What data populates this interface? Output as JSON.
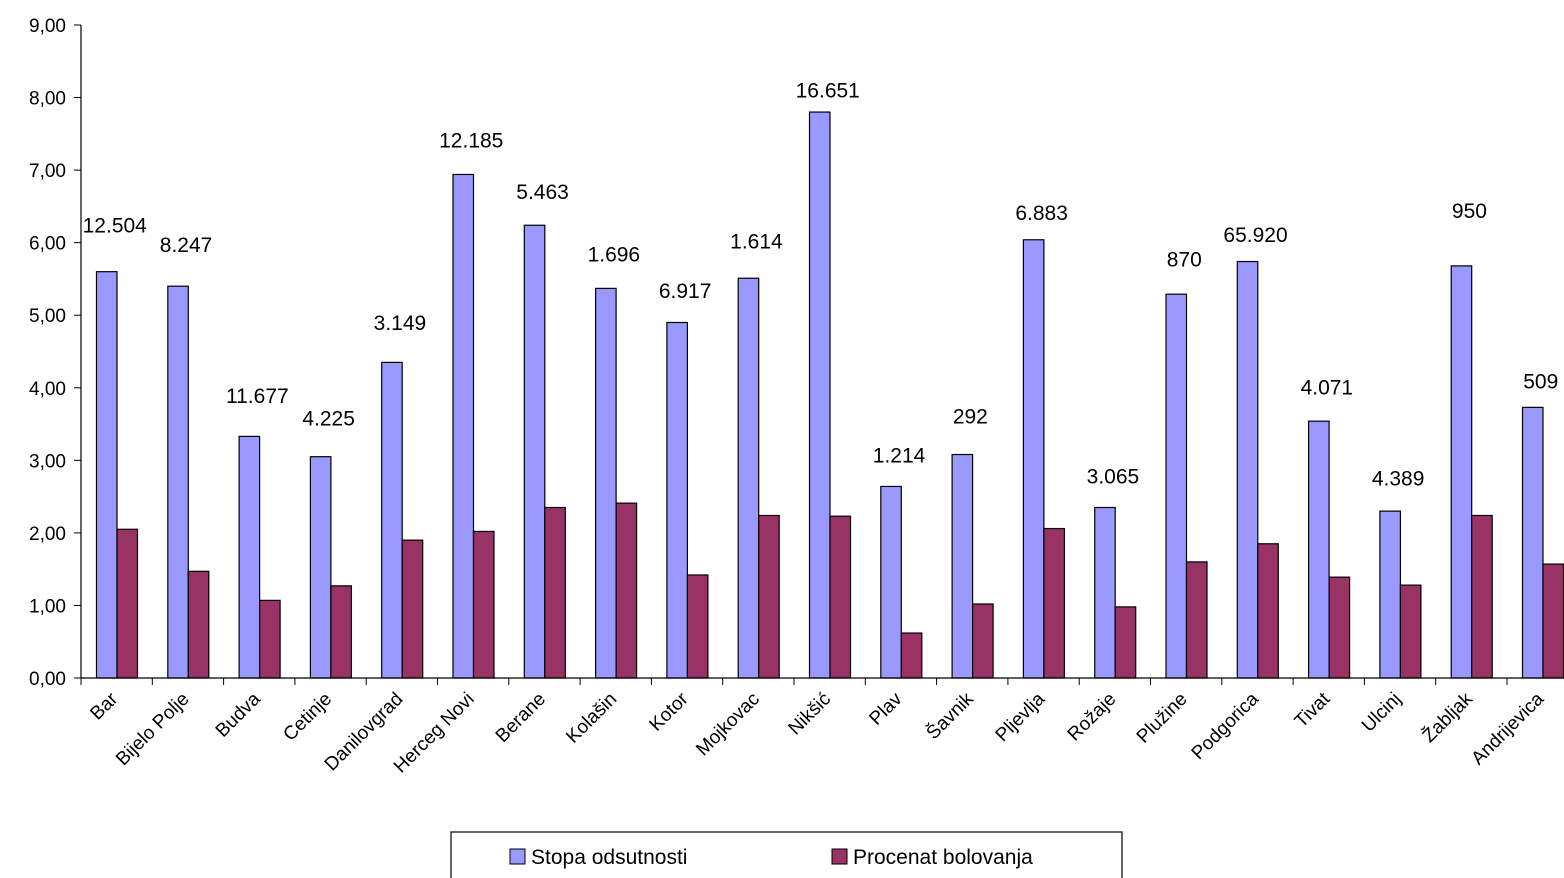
{
  "chart_data": {
    "type": "bar",
    "categories": [
      "Bar",
      "Bijelo Polje",
      "Budva",
      "Cetinje",
      "Danilovgrad",
      "Herceg Novi",
      "Berane",
      "Kolašin",
      "Kotor",
      "Mojkovac",
      "Nikšić",
      "Plav",
      "Šavnik",
      "Pljevlja",
      "Rožaje",
      "Plužine",
      "Podgorica",
      "Tivat",
      "Ulcinj",
      "Žabljak",
      "Andrijevica"
    ],
    "series": [
      {
        "name": "Stopa odsutnosti",
        "color": "#9999ff",
        "values": [
          5.6,
          5.4,
          3.33,
          3.05,
          4.35,
          6.94,
          6.24,
          5.37,
          4.9,
          5.51,
          7.8,
          2.64,
          3.08,
          6.04,
          2.35,
          5.29,
          5.74,
          3.54,
          2.3,
          5.68,
          3.73
        ]
      },
      {
        "name": "Procenat bolovanja",
        "color": "#993366",
        "values": [
          2.05,
          1.47,
          1.07,
          1.27,
          1.9,
          2.02,
          2.35,
          2.41,
          1.42,
          2.24,
          2.23,
          0.62,
          1.02,
          2.06,
          0.98,
          1.6,
          1.85,
          1.39,
          1.28,
          2.24,
          1.57
        ]
      }
    ],
    "data_labels": [
      "12.504",
      "8.247",
      "11.677",
      "4.225",
      "3.149",
      "12.185",
      "5.463",
      "1.696",
      "6.917",
      "1.614",
      "16.651",
      "1.214",
      "292",
      "6.883",
      "3.065",
      "870",
      "65.920",
      "4.071",
      "4.389",
      "950",
      "509"
    ],
    "data_label_y": [
      6.25,
      5.98,
      3.9,
      3.59,
      4.91,
      7.42,
      6.71,
      5.85,
      5.35,
      6.03,
      8.11,
      3.08,
      3.62,
      6.42,
      2.79,
      5.78,
      6.12,
      4.02,
      2.76,
      6.45,
      4.1
    ],
    "y_ticks": [
      "0,00",
      "1,00",
      "2,00",
      "3,00",
      "4,00",
      "5,00",
      "6,00",
      "7,00",
      "8,00",
      "9,00"
    ],
    "ylim": [
      0,
      9
    ],
    "grid": false,
    "legend_position": "bottom-center",
    "title": "",
    "xlabel": "",
    "ylabel": ""
  }
}
